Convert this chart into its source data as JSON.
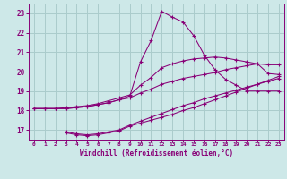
{
  "xlabel": "Windchill (Refroidissement éolien,°C)",
  "xlim": [
    -0.5,
    23.5
  ],
  "ylim": [
    16.5,
    23.5
  ],
  "yticks": [
    17,
    18,
    19,
    20,
    21,
    22,
    23
  ],
  "xticks": [
    0,
    1,
    2,
    3,
    4,
    5,
    6,
    7,
    8,
    9,
    10,
    11,
    12,
    13,
    14,
    15,
    16,
    17,
    18,
    19,
    20,
    21,
    22,
    23
  ],
  "bg_color": "#cde8e8",
  "grid_color": "#aacccc",
  "line_color": "#880077",
  "lines": [
    {
      "x": [
        0,
        1,
        2,
        3,
        4,
        5,
        6,
        7,
        8,
        9,
        10,
        11,
        12,
        13,
        14,
        15,
        16,
        17,
        18,
        19,
        20,
        21,
        22,
        23
      ],
      "y": [
        18.1,
        18.1,
        18.1,
        18.1,
        18.15,
        18.2,
        18.3,
        18.4,
        18.55,
        18.75,
        20.5,
        21.6,
        23.1,
        22.8,
        22.55,
        21.85,
        20.85,
        20.1,
        19.6,
        19.3,
        19.0,
        19.0,
        19.0,
        19.0
      ]
    },
    {
      "x": [
        0,
        1,
        2,
        3,
        4,
        5,
        6,
        7,
        8,
        9,
        10,
        11,
        12,
        13,
        14,
        15,
        16,
        17,
        18,
        19,
        20,
        21,
        22,
        23
      ],
      "y": [
        18.1,
        18.1,
        18.1,
        18.15,
        18.2,
        18.25,
        18.35,
        18.5,
        18.65,
        18.8,
        19.3,
        19.7,
        20.2,
        20.4,
        20.55,
        20.65,
        20.7,
        20.75,
        20.7,
        20.6,
        20.5,
        20.4,
        19.9,
        19.85
      ]
    },
    {
      "x": [
        0,
        1,
        2,
        3,
        4,
        5,
        6,
        7,
        8,
        9,
        10,
        11,
        12,
        13,
        14,
        15,
        16,
        17,
        18,
        19,
        20,
        21,
        22,
        23
      ],
      "y": [
        18.1,
        18.1,
        18.1,
        18.1,
        18.15,
        18.2,
        18.3,
        18.4,
        18.55,
        18.65,
        18.9,
        19.1,
        19.35,
        19.5,
        19.65,
        19.75,
        19.85,
        19.95,
        20.1,
        20.2,
        20.3,
        20.4,
        20.35,
        20.35
      ]
    },
    {
      "x": [
        3,
        4,
        5,
        6,
        7,
        8,
        9,
        10,
        11,
        12,
        13,
        14,
        15,
        16,
        17,
        18,
        19,
        20,
        21,
        22,
        23
      ],
      "y": [
        16.85,
        16.75,
        16.7,
        16.75,
        16.85,
        16.95,
        17.2,
        17.35,
        17.5,
        17.65,
        17.8,
        18.0,
        18.15,
        18.35,
        18.55,
        18.75,
        18.95,
        19.15,
        19.35,
        19.55,
        19.75
      ]
    },
    {
      "x": [
        3,
        4,
        5,
        6,
        7,
        8,
        9,
        10,
        11,
        12,
        13,
        14,
        15,
        16,
        17,
        18,
        19,
        20,
        21,
        22,
        23
      ],
      "y": [
        16.9,
        16.8,
        16.75,
        16.8,
        16.9,
        17.0,
        17.25,
        17.45,
        17.65,
        17.85,
        18.05,
        18.25,
        18.4,
        18.6,
        18.75,
        18.9,
        19.05,
        19.2,
        19.35,
        19.5,
        19.65
      ]
    }
  ]
}
